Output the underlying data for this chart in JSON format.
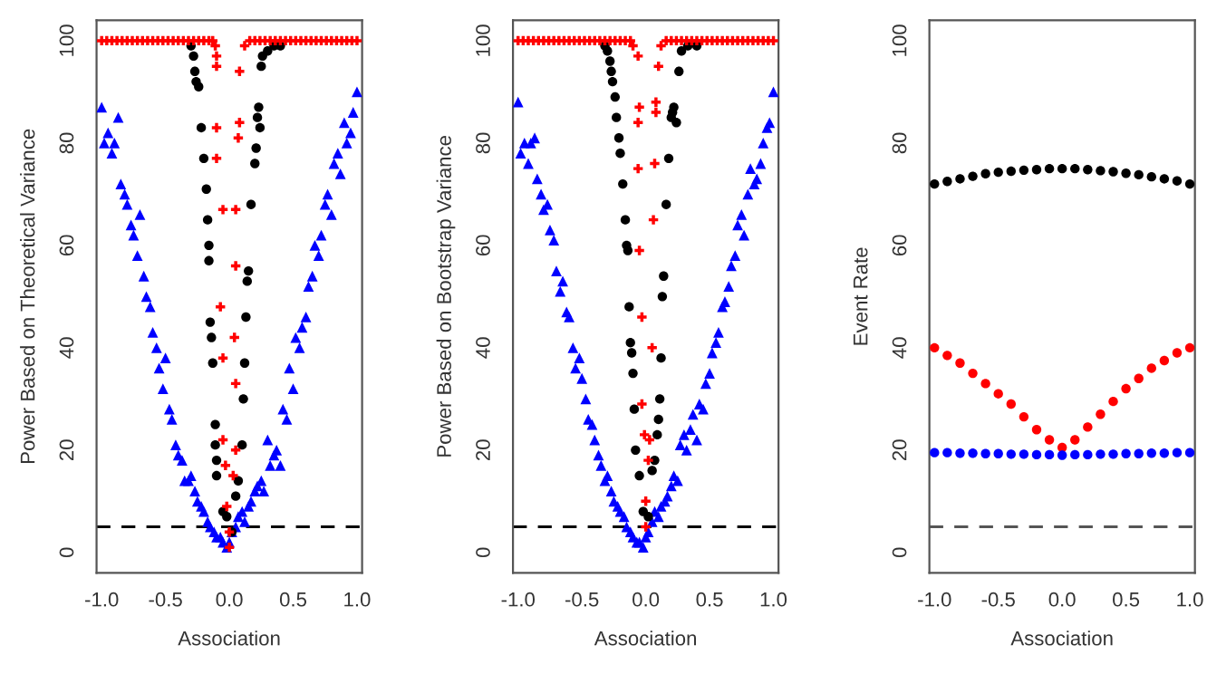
{
  "chart_data": [
    {
      "type": "scatter",
      "xlabel": "Association",
      "ylabel": "Power Based on Theoretical Variance",
      "xlim": [
        -1.04,
        1.04
      ],
      "ylim": [
        -4,
        104
      ],
      "xticks": [
        {
          "value": -1,
          "label": "-1.0"
        },
        {
          "value": -0.5,
          "label": "-0.5"
        },
        {
          "value": 0,
          "label": "0.0"
        },
        {
          "value": 0.5,
          "label": "0.5"
        },
        {
          "value": 1,
          "label": "1.0"
        }
      ],
      "yticks": [
        0,
        20,
        40,
        60,
        80,
        100
      ],
      "grid": false,
      "legend": false,
      "ref_lines": [
        {
          "axis": "y",
          "value": 5,
          "color": "#000000",
          "line_style": "dashed"
        }
      ],
      "series": [
        {
          "color": "#0000ff",
          "marker": "triangle",
          "x": [
            -1.0,
            -0.98,
            -0.95,
            -0.92,
            -0.9,
            -0.87,
            -0.85,
            -0.82,
            -0.8,
            -0.77,
            -0.75,
            -0.72,
            -0.7,
            -0.67,
            -0.65,
            -0.62,
            -0.6,
            -0.57,
            -0.55,
            -0.52,
            -0.5,
            -0.47,
            -0.45,
            -0.42,
            -0.4,
            -0.37,
            -0.35,
            -0.32,
            -0.3,
            -0.27,
            -0.25,
            -0.22,
            -0.2,
            -0.17,
            -0.15,
            -0.12,
            -0.1,
            -0.07,
            -0.05,
            -0.02,
            0.0,
            0.02,
            0.05,
            0.07,
            0.1,
            0.12,
            0.15,
            0.17,
            0.2,
            0.22,
            0.25,
            0.27,
            0.3,
            0.32,
            0.35,
            0.37,
            0.4,
            0.42,
            0.45,
            0.47,
            0.5,
            0.52,
            0.55,
            0.57,
            0.6,
            0.62,
            0.65,
            0.67,
            0.7,
            0.72,
            0.75,
            0.77,
            0.8,
            0.82,
            0.85,
            0.87,
            0.9,
            0.92,
            0.95,
            0.97,
            1.0
          ],
          "values": [
            87,
            80,
            82,
            78,
            80,
            85,
            72,
            70,
            68,
            64,
            62,
            58,
            66,
            54,
            50,
            48,
            43,
            40,
            36,
            32,
            38,
            28,
            26,
            21,
            19,
            18,
            14,
            14,
            15,
            12,
            10,
            9,
            8,
            6,
            5,
            4,
            3,
            3,
            2,
            1,
            2,
            4,
            5,
            7,
            8,
            6,
            9,
            10,
            12,
            13,
            14,
            12,
            22,
            17,
            19,
            20,
            17,
            28,
            26,
            36,
            32,
            42,
            40,
            44,
            46,
            52,
            54,
            60,
            58,
            62,
            68,
            70,
            66,
            76,
            78,
            74,
            84,
            80,
            82,
            86,
            90
          ]
        },
        {
          "color": "#000000",
          "marker": "circle",
          "x": [
            -0.3,
            -0.28,
            -0.27,
            -0.26,
            -0.24,
            -0.22,
            -0.2,
            -0.18,
            -0.17,
            -0.16,
            -0.16,
            -0.15,
            -0.14,
            -0.13,
            -0.11,
            -0.11,
            -0.1,
            -0.1,
            -0.05,
            -0.02,
            0.02,
            0.05,
            0.07,
            0.1,
            0.11,
            0.12,
            0.13,
            0.14,
            0.15,
            0.17,
            0.2,
            0.21,
            0.22,
            0.23,
            0.24,
            0.25,
            0.26,
            0.3,
            0.35,
            0.4
          ],
          "values": [
            99,
            97,
            94,
            92,
            91,
            83,
            77,
            71,
            65,
            60,
            57,
            45,
            42,
            37,
            25,
            21,
            18,
            15,
            8,
            7,
            4,
            11,
            14,
            21,
            30,
            37,
            46,
            53,
            55,
            68,
            76,
            79,
            85,
            87,
            83,
            95,
            97,
            98,
            99,
            99
          ]
        },
        {
          "color": "#ff0000",
          "marker": "cross",
          "x": [
            -1.0,
            -0.96,
            -0.92,
            -0.88,
            -0.84,
            -0.8,
            -0.76,
            -0.72,
            -0.68,
            -0.64,
            -0.6,
            -0.56,
            -0.52,
            -0.48,
            -0.44,
            -0.4,
            -0.36,
            -0.32,
            -0.28,
            -0.24,
            -0.2,
            -0.16,
            -0.13,
            -0.11,
            -0.1,
            -0.1,
            -0.1,
            -0.1,
            -0.07,
            -0.05,
            -0.05,
            -0.03,
            -0.02,
            0.0,
            0.0,
            0.03,
            0.05,
            0.05,
            0.04,
            0.05,
            0.05,
            -0.05,
            0.07,
            0.08,
            0.08,
            0.12,
            0.16,
            0.2,
            0.24,
            0.28,
            0.32,
            0.36,
            0.4,
            0.44,
            0.48,
            0.52,
            0.56,
            0.6,
            0.64,
            0.68,
            0.72,
            0.76,
            0.8,
            0.84,
            0.88,
            0.92,
            0.96,
            1.0
          ],
          "values": [
            100,
            100,
            100,
            100,
            100,
            100,
            100,
            100,
            100,
            100,
            100,
            100,
            100,
            100,
            100,
            100,
            100,
            100,
            100,
            100,
            100,
            100,
            100,
            99,
            97,
            95,
            83,
            77,
            48,
            38,
            22,
            17,
            9,
            4,
            1,
            15,
            20,
            33,
            42,
            56,
            67,
            67,
            81,
            84,
            94,
            99,
            100,
            100,
            100,
            100,
            100,
            100,
            100,
            100,
            100,
            100,
            100,
            100,
            100,
            100,
            100,
            100,
            100,
            100,
            100,
            100,
            100,
            100
          ]
        }
      ]
    },
    {
      "type": "scatter",
      "xlabel": "Association",
      "ylabel": "Power Based on Bootstrap Variance",
      "xlim": [
        -1.04,
        1.04
      ],
      "ylim": [
        -4,
        104
      ],
      "xticks": [
        {
          "value": -1,
          "label": "-1.0"
        },
        {
          "value": -0.5,
          "label": "-0.5"
        },
        {
          "value": 0,
          "label": "0.0"
        },
        {
          "value": 0.5,
          "label": "0.5"
        },
        {
          "value": 1,
          "label": "1.0"
        }
      ],
      "yticks": [
        0,
        20,
        40,
        60,
        80,
        100
      ],
      "grid": false,
      "legend": false,
      "ref_lines": [
        {
          "axis": "y",
          "value": 5,
          "color": "#000000",
          "line_style": "dashed"
        }
      ],
      "series": [
        {
          "color": "#0000ff",
          "marker": "triangle",
          "x": [
            -1.0,
            -0.98,
            -0.95,
            -0.92,
            -0.9,
            -0.87,
            -0.85,
            -0.82,
            -0.8,
            -0.77,
            -0.75,
            -0.72,
            -0.7,
            -0.67,
            -0.65,
            -0.62,
            -0.6,
            -0.57,
            -0.55,
            -0.52,
            -0.5,
            -0.47,
            -0.45,
            -0.42,
            -0.4,
            -0.37,
            -0.35,
            -0.32,
            -0.3,
            -0.27,
            -0.25,
            -0.22,
            -0.2,
            -0.17,
            -0.15,
            -0.12,
            -0.1,
            -0.07,
            -0.05,
            -0.02,
            0.0,
            0.02,
            0.05,
            0.07,
            0.1,
            0.12,
            0.15,
            0.17,
            0.2,
            0.22,
            0.25,
            0.27,
            0.3,
            0.32,
            0.35,
            0.37,
            0.4,
            0.42,
            0.45,
            0.47,
            0.5,
            0.52,
            0.55,
            0.57,
            0.6,
            0.62,
            0.65,
            0.67,
            0.7,
            0.72,
            0.75,
            0.77,
            0.8,
            0.82,
            0.85,
            0.87,
            0.9,
            0.92,
            0.95,
            0.97,
            1.0
          ],
          "values": [
            88,
            78,
            80,
            76,
            80,
            81,
            73,
            70,
            67,
            68,
            63,
            61,
            55,
            51,
            53,
            47,
            46,
            40,
            36,
            38,
            34,
            30,
            26,
            25,
            22,
            19,
            17,
            14,
            15,
            12,
            10,
            9,
            8,
            7,
            5,
            4,
            3,
            2,
            2,
            1,
            3,
            4,
            6,
            8,
            7,
            9,
            10,
            11,
            13,
            15,
            14,
            21,
            23,
            20,
            24,
            27,
            22,
            29,
            28,
            33,
            35,
            39,
            41,
            43,
            48,
            49,
            52,
            56,
            58,
            64,
            66,
            62,
            70,
            75,
            72,
            73,
            76,
            80,
            83,
            84,
            90
          ]
        },
        {
          "color": "#000000",
          "marker": "circle",
          "x": [
            -0.32,
            -0.3,
            -0.28,
            -0.27,
            -0.26,
            -0.24,
            -0.23,
            -0.21,
            -0.2,
            -0.18,
            -0.16,
            -0.15,
            -0.14,
            -0.13,
            -0.12,
            -0.11,
            -0.1,
            -0.09,
            -0.08,
            -0.05,
            -0.02,
            0.02,
            0.05,
            0.07,
            0.09,
            0.1,
            0.11,
            0.12,
            0.13,
            0.14,
            0.16,
            0.18,
            0.2,
            0.21,
            0.22,
            0.24,
            0.26,
            0.28,
            0.33,
            0.4
          ],
          "values": [
            99,
            98,
            96,
            94,
            92,
            89,
            85,
            81,
            78,
            72,
            65,
            60,
            59,
            48,
            41,
            39,
            35,
            28,
            20,
            15,
            8,
            7,
            16,
            18,
            23,
            26,
            30,
            38,
            50,
            54,
            68,
            77,
            85,
            86,
            87,
            84,
            94,
            98,
            99,
            99
          ]
        },
        {
          "color": "#ff0000",
          "marker": "cross",
          "x": [
            -1.0,
            -0.96,
            -0.92,
            -0.88,
            -0.84,
            -0.8,
            -0.76,
            -0.72,
            -0.68,
            -0.64,
            -0.6,
            -0.56,
            -0.52,
            -0.48,
            -0.44,
            -0.4,
            -0.36,
            -0.32,
            -0.28,
            -0.24,
            -0.2,
            -0.16,
            -0.12,
            -0.1,
            -0.06,
            -0.05,
            -0.06,
            -0.06,
            -0.05,
            -0.03,
            -0.03,
            -0.01,
            0.0,
            0.0,
            0.02,
            0.03,
            0.05,
            0.06,
            0.07,
            0.08,
            0.08,
            0.1,
            0.12,
            0.16,
            0.2,
            0.24,
            0.28,
            0.32,
            0.36,
            0.4,
            0.44,
            0.48,
            0.52,
            0.56,
            0.6,
            0.64,
            0.68,
            0.72,
            0.76,
            0.8,
            0.84,
            0.88,
            0.92,
            0.96,
            1.0
          ],
          "values": [
            100,
            100,
            100,
            100,
            100,
            100,
            100,
            100,
            100,
            100,
            100,
            100,
            100,
            100,
            100,
            100,
            100,
            100,
            100,
            100,
            100,
            100,
            100,
            99,
            97,
            87,
            84,
            75,
            59,
            46,
            29,
            23,
            10,
            5,
            18,
            22,
            40,
            65,
            76,
            86,
            88,
            95,
            99,
            100,
            100,
            100,
            100,
            100,
            100,
            100,
            100,
            100,
            100,
            100,
            100,
            100,
            100,
            100,
            100,
            100,
            100,
            100,
            100,
            100,
            100
          ]
        }
      ]
    },
    {
      "type": "scatter",
      "xlabel": "Association",
      "ylabel": "Event Rate",
      "xlim": [
        -1.04,
        1.04
      ],
      "ylim": [
        -4,
        104
      ],
      "xticks": [
        {
          "value": -1,
          "label": "-1.0"
        },
        {
          "value": -0.5,
          "label": "-0.5"
        },
        {
          "value": 0,
          "label": "0.0"
        },
        {
          "value": 0.5,
          "label": "0.5"
        },
        {
          "value": 1,
          "label": "1.0"
        }
      ],
      "yticks": [
        0,
        20,
        40,
        60,
        80,
        100
      ],
      "grid": false,
      "legend": false,
      "ref_lines": [
        {
          "axis": "y",
          "value": 5,
          "color": "#555555",
          "line_style": "dashed"
        }
      ],
      "series": [
        {
          "color": "#000000",
          "marker": "circle",
          "x": [
            -1.0,
            -0.9,
            -0.8,
            -0.7,
            -0.6,
            -0.5,
            -0.4,
            -0.3,
            -0.2,
            -0.1,
            0.0,
            0.1,
            0.2,
            0.3,
            0.4,
            0.5,
            0.6,
            0.7,
            0.8,
            0.9,
            1.0
          ],
          "values": [
            72,
            72.5,
            73,
            73.5,
            74,
            74.3,
            74.5,
            74.7,
            74.8,
            75,
            75,
            75,
            74.8,
            74.6,
            74.4,
            74.1,
            73.8,
            73.4,
            73,
            72.6,
            72
          ]
        },
        {
          "color": "#ff0000",
          "marker": "circle",
          "x": [
            -1.0,
            -0.9,
            -0.8,
            -0.7,
            -0.6,
            -0.5,
            -0.4,
            -0.3,
            -0.2,
            -0.1,
            0.0,
            0.1,
            0.2,
            0.3,
            0.4,
            0.5,
            0.6,
            0.7,
            0.8,
            0.9,
            1.0
          ],
          "values": [
            40,
            38.5,
            37,
            35,
            33,
            31,
            29,
            26.5,
            24,
            22,
            20.5,
            22,
            24.5,
            27,
            29.5,
            32,
            34,
            36,
            37.5,
            39,
            40
          ]
        },
        {
          "color": "#0000ff",
          "marker": "circle",
          "x": [
            -1.0,
            -0.9,
            -0.8,
            -0.7,
            -0.6,
            -0.5,
            -0.4,
            -0.3,
            -0.2,
            -0.1,
            0.0,
            0.1,
            0.2,
            0.3,
            0.4,
            0.5,
            0.6,
            0.7,
            0.8,
            0.9,
            1.0
          ],
          "values": [
            19.5,
            19.5,
            19.4,
            19.4,
            19.3,
            19.3,
            19.2,
            19.2,
            19.1,
            19.1,
            19,
            19.1,
            19.1,
            19.2,
            19.2,
            19.3,
            19.3,
            19.4,
            19.4,
            19.5,
            19.5
          ]
        }
      ]
    }
  ]
}
